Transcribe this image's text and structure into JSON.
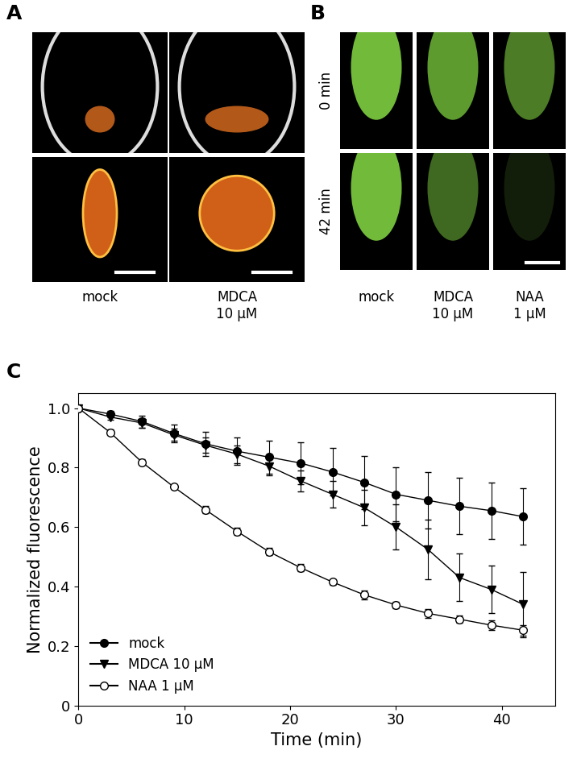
{
  "panel_labels": [
    "A",
    "B",
    "C"
  ],
  "panel_a": {
    "columns": [
      "mock",
      "MDCA 10 µM"
    ]
  },
  "panel_b": {
    "rows": [
      "0 min",
      "42 min"
    ],
    "columns": [
      "mock",
      "MDCA 10 µM",
      "NAA 1 µM"
    ]
  },
  "chart_data": {
    "type": "line",
    "x_label": "Time (min)",
    "y_label": "Normalized fluorescence",
    "x": [
      0,
      3,
      6,
      9,
      12,
      15,
      18,
      21,
      24,
      27,
      30,
      33,
      36,
      39,
      42
    ],
    "xlim": [
      0,
      45
    ],
    "xticks": [
      0,
      10,
      20,
      30,
      40
    ],
    "ylim": [
      0,
      1.05
    ],
    "yticks": [
      0,
      0.2,
      0.4,
      0.6,
      0.8,
      1.0
    ],
    "legend": "lower left",
    "grid": false,
    "series": [
      {
        "name": "mock",
        "color": "#000000",
        "marker": "circle",
        "line_style": "solid",
        "values": [
          1.0,
          0.98,
          0.955,
          0.915,
          0.88,
          0.855,
          0.835,
          0.815,
          0.785,
          0.75,
          0.71,
          0.69,
          0.67,
          0.655,
          0.635
        ],
        "errors": [
          0,
          0.01,
          0.02,
          0.03,
          0.04,
          0.045,
          0.055,
          0.07,
          0.08,
          0.09,
          0.09,
          0.095,
          0.095,
          0.095,
          0.095
        ]
      },
      {
        "name": "MDCA 10 µM",
        "color": "#000000",
        "marker": "triangle_down",
        "line_style": "solid",
        "values": [
          1.0,
          0.97,
          0.95,
          0.91,
          0.875,
          0.845,
          0.805,
          0.755,
          0.71,
          0.665,
          0.6,
          0.525,
          0.43,
          0.39,
          0.34
        ],
        "errors": [
          0,
          0.01,
          0.015,
          0.02,
          0.025,
          0.03,
          0.03,
          0.035,
          0.045,
          0.06,
          0.075,
          0.1,
          0.08,
          0.08,
          0.11
        ]
      },
      {
        "name": "NAA 1 µM",
        "color": "#000000",
        "marker": "open_circle",
        "line_style": "solid",
        "values": [
          1.0,
          0.918,
          0.818,
          0.735,
          0.658,
          0.585,
          0.517,
          0.463,
          0.415,
          0.372,
          0.338,
          0.31,
          0.29,
          0.27,
          0.253
        ],
        "errors": [
          0,
          0.01,
          0.01,
          0.007,
          0.012,
          0.012,
          0.012,
          0.012,
          0.01,
          0.015,
          0.01,
          0.015,
          0.012,
          0.015,
          0.018
        ]
      }
    ]
  }
}
